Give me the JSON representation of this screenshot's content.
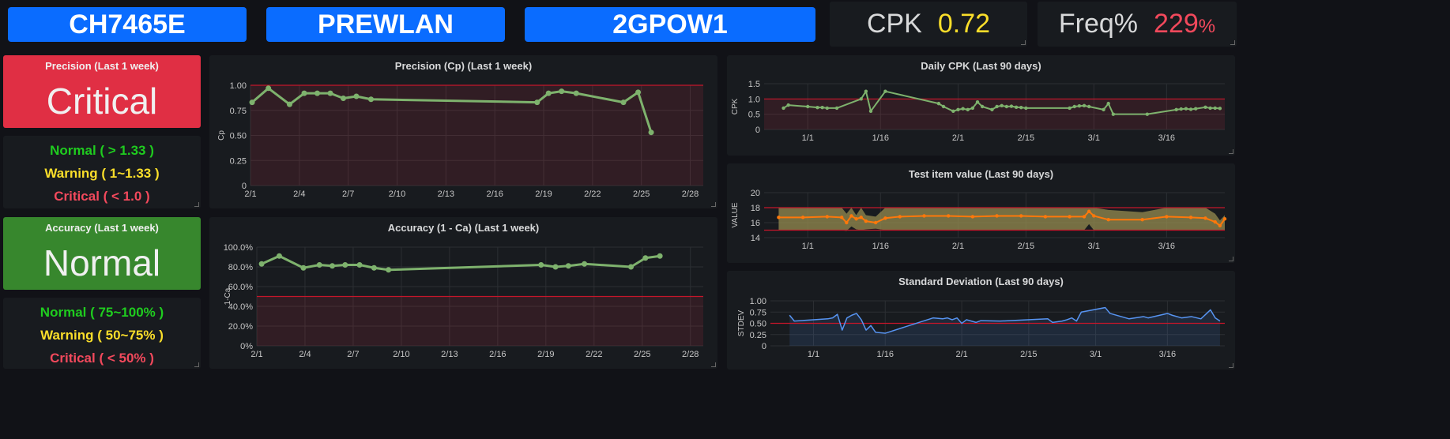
{
  "header": {
    "btn1": "CH7465E",
    "btn2": "PREWLAN",
    "btn3": "2GPOW1",
    "cpk_label": "CPK",
    "cpk_value": "0.72",
    "freq_label": "Freq%",
    "freq_value": "229",
    "freq_unit": "%"
  },
  "colors": {
    "accent_blue": "#0a6cff",
    "critical": "#e02f44",
    "normal": "#37872d",
    "warning": "#f2cc0c",
    "green_text": "#1fcc1f",
    "yellow_text": "#fade2a",
    "red_text": "#f2495c",
    "line_green": "#7eb26d",
    "line_orange": "#ff780a",
    "line_blue": "#5794f2"
  },
  "precision_status": {
    "title": "Precision (Last 1 week)",
    "value": "Critical"
  },
  "precision_legend": {
    "normal": "Normal ( > 1.33 )",
    "warning": "Warning ( 1~1.33 )",
    "critical": "Critical ( < 1.0 )"
  },
  "accuracy_status": {
    "title": "Accuracy (Last 1 week)",
    "value": "Normal"
  },
  "accuracy_legend": {
    "normal": "Normal ( 75~100% )",
    "warning": "Warning ( 50~75% )",
    "critical": "Critical ( < 50% )"
  },
  "chart_data": [
    {
      "id": "cp",
      "type": "line",
      "title": "Precision (Cp) (Last 1 week)",
      "ylabel": "Cp",
      "ylim": [
        0,
        1.0
      ],
      "yticks": [
        "0",
        "0.25",
        "0.50",
        "0.75",
        "1.00"
      ],
      "xticks": [
        "2/1",
        "2/4",
        "2/7",
        "2/10",
        "2/13",
        "2/16",
        "2/19",
        "2/22",
        "2/25",
        "2/28"
      ],
      "xlim": [
        1,
        28.8
      ],
      "threshold": 1.0,
      "x": [
        1.1,
        2.1,
        3.4,
        4.3,
        5.1,
        5.9,
        6.7,
        7.5,
        8.4,
        18.6,
        19.3,
        20.1,
        21.0,
        23.9,
        24.8,
        25.6
      ],
      "values": [
        0.83,
        0.97,
        0.81,
        0.92,
        0.92,
        0.92,
        0.87,
        0.89,
        0.86,
        0.83,
        0.92,
        0.94,
        0.92,
        0.83,
        0.93,
        0.53
      ]
    },
    {
      "id": "ca",
      "type": "line",
      "title": "Accuracy (1 - Ca) (Last 1 week)",
      "ylabel": "1-Ca",
      "ylim": [
        0,
        100
      ],
      "yticks": [
        "0%",
        "20.0%",
        "40.0%",
        "60.0%",
        "80.0%",
        "100.0%"
      ],
      "xticks": [
        "2/1",
        "2/4",
        "2/7",
        "2/10",
        "2/13",
        "2/16",
        "2/19",
        "2/22",
        "2/25",
        "2/28"
      ],
      "xlim": [
        1,
        28.8
      ],
      "threshold": 50,
      "x": [
        1.3,
        2.4,
        3.9,
        4.9,
        5.7,
        6.5,
        7.4,
        8.3,
        9.2,
        18.7,
        19.6,
        20.4,
        21.4,
        24.3,
        25.2,
        26.1
      ],
      "values": [
        83,
        91,
        79,
        82,
        81,
        82,
        82,
        79,
        77,
        82,
        80,
        81,
        83,
        80,
        89,
        91
      ]
    },
    {
      "id": "daily_cpk",
      "type": "line",
      "title": "Daily CPK (Last 90 days)",
      "ylabel": "CPK",
      "ylim": [
        0,
        1.5
      ],
      "yticks": [
        "0",
        "0.5",
        "1.0",
        "1.5"
      ],
      "xticks": [
        "1/1",
        "1/16",
        "2/1",
        "2/15",
        "3/1",
        "3/16"
      ],
      "xlim": [
        -8,
        87
      ],
      "threshold": 1.0,
      "x": [
        -4,
        -3,
        1,
        3,
        4,
        5,
        7,
        12,
        13,
        14,
        17,
        28,
        29,
        31,
        32,
        33,
        34,
        35,
        36,
        37,
        39,
        40,
        41,
        42,
        43,
        44,
        45,
        46,
        55,
        56,
        57,
        58,
        59,
        62,
        63,
        64,
        71,
        77,
        78,
        79,
        80,
        81,
        83,
        84,
        85,
        86
      ],
      "values": [
        0.7,
        0.8,
        0.75,
        0.72,
        0.72,
        0.7,
        0.7,
        1.0,
        1.25,
        0.6,
        1.25,
        0.85,
        0.75,
        0.6,
        0.65,
        0.68,
        0.65,
        0.7,
        0.9,
        0.75,
        0.65,
        0.75,
        0.78,
        0.75,
        0.76,
        0.73,
        0.72,
        0.7,
        0.7,
        0.75,
        0.77,
        0.78,
        0.75,
        0.65,
        0.85,
        0.5,
        0.5,
        0.65,
        0.67,
        0.68,
        0.66,
        0.68,
        0.73,
        0.7,
        0.7,
        0.69
      ]
    },
    {
      "id": "test_item",
      "type": "area",
      "title": "Test item value (Last 90 days)",
      "ylabel": "VALUE",
      "ylim": [
        14,
        20
      ],
      "yticks": [
        "14",
        "16",
        "18",
        "20"
      ],
      "xticks": [
        "1/1",
        "1/16",
        "2/1",
        "2/15",
        "3/1",
        "3/16"
      ],
      "xlim": [
        -8,
        87
      ],
      "upper_limit": 18,
      "lower_limit": 15,
      "x": [
        -5,
        0,
        5,
        8,
        9,
        10,
        11,
        12,
        13,
        15,
        17,
        20,
        25,
        30,
        35,
        40,
        45,
        50,
        55,
        58,
        59,
        60,
        63,
        70,
        75,
        80,
        83,
        85,
        86,
        87
      ],
      "values": [
        16.7,
        16.7,
        16.8,
        16.7,
        16.0,
        16.9,
        16.5,
        16.7,
        16.2,
        16.0,
        16.6,
        16.8,
        16.9,
        16.9,
        16.8,
        16.9,
        16.9,
        16.8,
        16.8,
        16.8,
        17.5,
        16.9,
        16.4,
        16.4,
        16.8,
        16.7,
        16.6,
        16.1,
        15.6,
        16.5
      ],
      "band_upper": [
        18,
        18,
        18,
        18,
        17.2,
        18,
        17,
        18,
        17,
        16.8,
        18,
        18,
        18,
        18,
        18,
        18,
        18,
        18,
        18,
        18,
        18,
        18,
        17.7,
        17.4,
        18,
        18,
        18,
        17.2,
        16.3,
        17.0
      ],
      "band_lower": [
        15,
        15,
        15,
        15,
        14.9,
        15.5,
        15.1,
        15,
        15.1,
        15.2,
        15,
        15,
        15,
        15,
        15,
        15,
        15,
        15,
        15,
        15,
        15.8,
        15,
        15,
        15,
        15,
        15,
        15,
        15,
        15,
        15
      ]
    },
    {
      "id": "stdev",
      "type": "area",
      "title": "Standard Deviation (Last 90 days)",
      "ylabel": "STDEV",
      "ylim": [
        0,
        1.0
      ],
      "yticks": [
        "0",
        "0.25",
        "0.50",
        "0.75",
        "1.00"
      ],
      "xticks": [
        "1/1",
        "1/16",
        "2/1",
        "2/15",
        "3/1",
        "3/16"
      ],
      "xlim": [
        -8,
        87
      ],
      "threshold": 0.5,
      "x": [
        -4,
        -3,
        1,
        4,
        5,
        6,
        7,
        8,
        9,
        10,
        11,
        12,
        13,
        14,
        16,
        26,
        28,
        29,
        30,
        31,
        32,
        33,
        34,
        35,
        36,
        40,
        50,
        51,
        53,
        54,
        55,
        56,
        57,
        62,
        63,
        67,
        70,
        71,
        75,
        76,
        78,
        80,
        82,
        84,
        85,
        86
      ],
      "values": [
        0.68,
        0.55,
        0.58,
        0.6,
        0.62,
        0.7,
        0.35,
        0.62,
        0.68,
        0.72,
        0.58,
        0.35,
        0.45,
        0.3,
        0.28,
        0.62,
        0.6,
        0.62,
        0.58,
        0.62,
        0.5,
        0.58,
        0.55,
        0.52,
        0.56,
        0.55,
        0.6,
        0.52,
        0.55,
        0.58,
        0.62,
        0.55,
        0.75,
        0.85,
        0.72,
        0.6,
        0.65,
        0.62,
        0.72,
        0.68,
        0.62,
        0.65,
        0.6,
        0.8,
        0.62,
        0.55
      ]
    }
  ]
}
